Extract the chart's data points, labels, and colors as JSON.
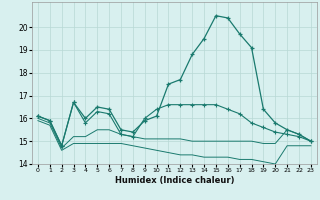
{
  "xlabel": "Humidex (Indice chaleur)",
  "x": [
    0,
    1,
    2,
    3,
    4,
    5,
    6,
    7,
    8,
    9,
    10,
    11,
    12,
    13,
    14,
    15,
    16,
    17,
    18,
    19,
    20,
    21,
    22,
    23
  ],
  "line1": [
    16.1,
    15.9,
    14.8,
    16.7,
    16.0,
    16.5,
    16.4,
    15.5,
    15.4,
    15.9,
    16.1,
    17.5,
    17.7,
    18.8,
    19.5,
    20.5,
    20.4,
    19.7,
    19.1,
    16.4,
    15.8,
    15.5,
    15.3,
    15.0
  ],
  "line2": [
    16.1,
    15.9,
    14.8,
    16.7,
    15.8,
    16.3,
    16.2,
    15.3,
    15.2,
    16.0,
    16.4,
    16.6,
    16.6,
    16.6,
    16.6,
    16.6,
    16.4,
    16.2,
    15.8,
    15.6,
    15.4,
    15.3,
    15.2,
    15.0
  ],
  "line3": [
    16.0,
    15.8,
    14.7,
    15.2,
    15.2,
    15.5,
    15.5,
    15.3,
    15.2,
    15.1,
    15.1,
    15.1,
    15.1,
    15.0,
    15.0,
    15.0,
    15.0,
    15.0,
    15.0,
    14.9,
    14.9,
    15.5,
    15.3,
    15.0
  ],
  "line4": [
    15.9,
    15.7,
    14.6,
    14.9,
    14.9,
    14.9,
    14.9,
    14.9,
    14.8,
    14.7,
    14.6,
    14.5,
    14.4,
    14.4,
    14.3,
    14.3,
    14.3,
    14.2,
    14.2,
    14.1,
    14.0,
    14.8,
    14.8,
    14.8
  ],
  "line_color": "#1a7a6e",
  "bg_color": "#d8f0ef",
  "grid_color": "#b8d8d5",
  "ylim": [
    14,
    21
  ],
  "yticks": [
    14,
    15,
    16,
    17,
    18,
    19,
    20
  ],
  "xticks": [
    0,
    1,
    2,
    3,
    4,
    5,
    6,
    7,
    8,
    9,
    10,
    11,
    12,
    13,
    14,
    15,
    16,
    17,
    18,
    19,
    20,
    21,
    22,
    23
  ]
}
